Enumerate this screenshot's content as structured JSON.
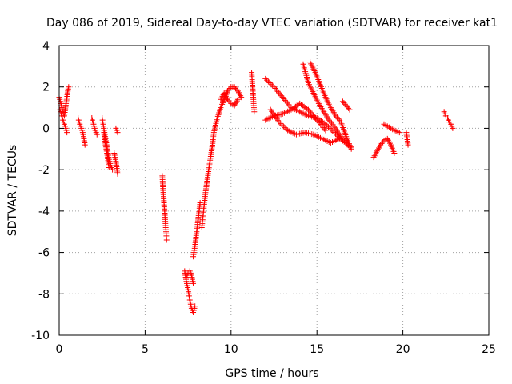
{
  "chart_data": {
    "type": "scatter",
    "title": "Day 086 of 2019, Sidereal Day-to-day VTEC variation (SDTVAR) for receiver kat1",
    "xlabel": "GPS time / hours",
    "ylabel": "SDTVAR / TECUs",
    "xlim": [
      0,
      25
    ],
    "ylim": [
      -10,
      4
    ],
    "xticks": [
      0,
      5,
      10,
      15,
      20,
      25
    ],
    "xtick_labels": [
      "0",
      "5",
      "10",
      "15",
      "20",
      "25"
    ],
    "yticks": [
      -10,
      -8,
      -6,
      -4,
      -2,
      0,
      2,
      4
    ],
    "ytick_labels": [
      "-10",
      "-8",
      "-6",
      "-4",
      "-2",
      "0",
      "2",
      "4"
    ],
    "grid": true,
    "marker": "+",
    "color": "#ff0000",
    "segments": [
      {
        "name": "seg-a",
        "x": [
          0.0,
          0.1,
          0.2,
          0.3,
          0.4,
          0.5,
          0.55
        ],
        "y": [
          1.5,
          1.2,
          0.8,
          0.6,
          1.2,
          1.8,
          2.0
        ]
      },
      {
        "name": "seg-a2",
        "x": [
          0.05,
          0.15,
          0.25,
          0.35,
          0.45
        ],
        "y": [
          0.9,
          0.6,
          0.3,
          0.1,
          -0.2
        ]
      },
      {
        "name": "seg-b",
        "x": [
          1.1,
          1.2,
          1.3,
          1.4,
          1.5
        ],
        "y": [
          0.5,
          0.2,
          0.0,
          -0.3,
          -0.8
        ]
      },
      {
        "name": "seg-c",
        "x": [
          1.9,
          2.0,
          2.1,
          2.2
        ],
        "y": [
          0.5,
          0.2,
          -0.1,
          -0.3
        ]
      },
      {
        "name": "seg-d",
        "x": [
          2.5,
          2.6,
          2.7,
          2.8,
          2.9,
          3.0,
          3.1
        ],
        "y": [
          0.5,
          0.0,
          -0.5,
          -1.0,
          -1.5,
          -1.8,
          -2.0
        ]
      },
      {
        "name": "seg-d2",
        "x": [
          2.6,
          2.7,
          2.8,
          2.9
        ],
        "y": [
          -0.2,
          -0.8,
          -1.3,
          -1.9
        ]
      },
      {
        "name": "seg-e",
        "x": [
          3.2,
          3.3,
          3.4
        ],
        "y": [
          -1.2,
          -1.6,
          -2.2
        ]
      },
      {
        "name": "seg-e2",
        "x": [
          3.3,
          3.4
        ],
        "y": [
          0.0,
          -0.2
        ]
      },
      {
        "name": "seg-f",
        "x": [
          6.0,
          6.05,
          6.1,
          6.15,
          6.2,
          6.25
        ],
        "y": [
          -2.3,
          -3.0,
          -3.6,
          -4.2,
          -4.8,
          -5.4
        ]
      },
      {
        "name": "seg-g",
        "x": [
          7.3,
          7.4,
          7.5,
          7.6,
          7.7,
          7.8,
          7.9
        ],
        "y": [
          -6.9,
          -7.4,
          -7.8,
          -8.3,
          -8.7,
          -8.9,
          -8.6
        ]
      },
      {
        "name": "seg-g2",
        "x": [
          7.4,
          7.5,
          7.6,
          7.7,
          7.8
        ],
        "y": [
          -7.2,
          -7.0,
          -6.9,
          -7.1,
          -7.5
        ]
      },
      {
        "name": "seg-h",
        "x": [
          7.8,
          7.9,
          8.0,
          8.1,
          8.2
        ],
        "y": [
          -6.2,
          -5.7,
          -5.0,
          -4.3,
          -3.6
        ]
      },
      {
        "name": "seg-i",
        "x": [
          8.3,
          8.5,
          8.7,
          8.9,
          9.0,
          9.2,
          9.4,
          9.6,
          9.8,
          10.0,
          10.2,
          10.4,
          10.6
        ],
        "y": [
          -4.8,
          -3.2,
          -2.0,
          -0.9,
          -0.2,
          0.5,
          1.0,
          1.4,
          1.8,
          2.0,
          2.0,
          1.8,
          1.5
        ]
      },
      {
        "name": "seg-i2",
        "x": [
          9.4,
          9.6,
          9.8,
          10.0,
          10.2,
          10.4
        ],
        "y": [
          1.4,
          1.7,
          1.4,
          1.2,
          1.1,
          1.4
        ]
      },
      {
        "name": "seg-j",
        "x": [
          11.2,
          11.25,
          11.3,
          11.35
        ],
        "y": [
          2.7,
          2.0,
          1.4,
          0.8
        ]
      },
      {
        "name": "seg-k",
        "x": [
          12.0,
          12.5,
          13.0,
          13.5,
          14.0,
          14.5,
          15.0,
          15.5,
          16.0,
          16.5,
          17.0
        ],
        "y": [
          2.4,
          2.0,
          1.5,
          1.0,
          0.8,
          0.6,
          0.5,
          0.2,
          -0.2,
          -0.6,
          -0.9
        ]
      },
      {
        "name": "seg-l",
        "x": [
          12.0,
          12.5,
          13.0,
          13.5,
          14.0,
          14.5,
          15.0,
          15.5
        ],
        "y": [
          0.4,
          0.6,
          0.7,
          0.9,
          1.2,
          0.9,
          0.4,
          -0.1
        ]
      },
      {
        "name": "seg-m",
        "x": [
          12.3,
          12.8,
          13.3,
          13.8,
          14.3,
          14.8,
          15.3,
          15.8,
          16.3
        ],
        "y": [
          0.9,
          0.3,
          -0.1,
          -0.3,
          -0.2,
          -0.3,
          -0.5,
          -0.7,
          -0.5
        ]
      },
      {
        "name": "seg-n",
        "x": [
          14.2,
          14.5,
          14.8,
          15.1,
          15.4,
          15.7,
          16.0,
          16.3,
          16.6,
          16.9
        ],
        "y": [
          3.1,
          2.2,
          1.7,
          1.2,
          0.8,
          0.4,
          0.1,
          -0.3,
          -0.6,
          -0.9
        ]
      },
      {
        "name": "seg-o",
        "x": [
          14.6,
          14.9,
          15.2,
          15.5,
          15.8,
          16.1,
          16.4,
          16.7,
          17.0
        ],
        "y": [
          3.2,
          2.7,
          2.1,
          1.5,
          1.0,
          0.6,
          0.3,
          -0.4,
          -1.0
        ]
      },
      {
        "name": "seg-p",
        "x": [
          16.5,
          16.7,
          16.9
        ],
        "y": [
          1.3,
          1.1,
          0.9
        ]
      },
      {
        "name": "seg-q",
        "x": [
          18.3,
          18.5,
          18.7,
          18.9,
          19.1,
          19.3,
          19.5
        ],
        "y": [
          -1.4,
          -1.1,
          -0.8,
          -0.6,
          -0.5,
          -0.8,
          -1.2
        ]
      },
      {
        "name": "seg-q2",
        "x": [
          18.9,
          19.1,
          19.3,
          19.5,
          19.8
        ],
        "y": [
          0.2,
          0.1,
          0.0,
          -0.1,
          -0.2
        ]
      },
      {
        "name": "seg-r",
        "x": [
          20.2,
          20.3
        ],
        "y": [
          -0.2,
          -0.8
        ]
      },
      {
        "name": "seg-s",
        "x": [
          22.4,
          22.5,
          22.6,
          22.7,
          22.8,
          22.9
        ],
        "y": [
          0.8,
          0.6,
          0.5,
          0.3,
          0.2,
          0.0
        ]
      }
    ]
  }
}
